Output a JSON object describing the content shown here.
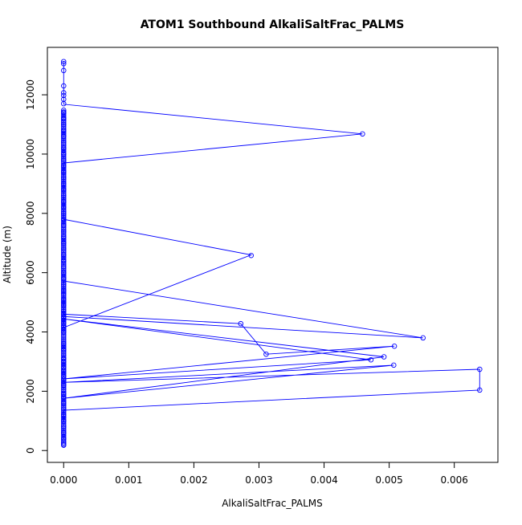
{
  "chart_data": {
    "type": "line",
    "title": "ATOM1 Southbound AlkaliSaltFrac_PALMS",
    "xlabel": "AlkaliSaltFrac_PALMS",
    "ylabel": "Altitude (m)",
    "xlim": [
      -0.00025,
      0.00667
    ],
    "ylim": [
      -400,
      13600
    ],
    "xticks": [
      0.0,
      0.001,
      0.002,
      0.003,
      0.004,
      0.005,
      0.006
    ],
    "xtick_labels": [
      "0.000",
      "0.001",
      "0.002",
      "0.003",
      "0.004",
      "0.005",
      "0.006"
    ],
    "yticks": [
      0,
      2000,
      4000,
      6000,
      8000,
      10000,
      12000
    ],
    "ytick_labels": [
      "0",
      "2000",
      "4000",
      "6000",
      "8000",
      "10000",
      "12000"
    ],
    "grid": false,
    "marker": "open-circle",
    "color": "#0000ff",
    "series": [
      {
        "x": [
          0.0,
          0.0,
          0.0,
          0.0,
          0.0,
          0.0,
          0.0,
          0.0,
          0.0,
          0.0,
          0.0,
          0.0,
          0.0,
          0.0,
          0.0,
          0.0,
          0.0,
          0.0,
          0.0,
          0.0,
          0.0,
          0.0,
          0.00459,
          0.0,
          0.0,
          0.0,
          0.0,
          0.0,
          0.0,
          0.0,
          0.0,
          0.0,
          0.0,
          0.0,
          0.0,
          0.0,
          0.0,
          0.0,
          0.0,
          0.0,
          0.00288,
          0.0,
          0.0,
          0.0,
          0.0,
          0.0,
          0.0,
          0.0,
          0.0,
          0.0,
          0.0,
          0.0,
          0.0,
          0.00552,
          0.0,
          0.0,
          0.0,
          0.00272,
          0.00311,
          0.0,
          0.0,
          0.00508,
          0.0,
          0.00472,
          0.0,
          0.0,
          0.00492,
          0.0,
          0.0,
          0.00507,
          0.0,
          0.0,
          0.0,
          0.00639,
          0.00639,
          0.0,
          0.0,
          0.0,
          0.0,
          0.0,
          0.0,
          0.0,
          0.0,
          0.0,
          0.0,
          0.0
        ],
        "y": [
          13120,
          13050,
          12820,
          12300,
          12070,
          11980,
          11850,
          11700,
          11400,
          11200,
          11000,
          10800,
          10600,
          10400,
          10200,
          10000,
          9800,
          9600,
          9400,
          9200,
          9000,
          8800,
          10680,
          8600,
          8400,
          8200,
          8000,
          7800,
          7600,
          7400,
          7200,
          7000,
          6800,
          6600,
          6400,
          6200,
          6000,
          5800,
          5600,
          5400,
          6580,
          5300,
          5100,
          5000,
          4900,
          4700,
          4600,
          4500,
          4400,
          4300,
          4200,
          4100,
          4000,
          3800,
          3600,
          3500,
          3400,
          4280,
          3250,
          3100,
          3000,
          3520,
          2900,
          3060,
          2800,
          2700,
          3160,
          2600,
          2500,
          2880,
          2400,
          2300,
          2200,
          2740,
          2040,
          1900,
          1800,
          1600,
          1400,
          1200,
          1000,
          800,
          600,
          400,
          250,
          180
        ]
      }
    ],
    "line_x": [
      0.0,
      0.0,
      0.0,
      0.0,
      0.0,
      0.0,
      0.0,
      0.0,
      0.00459,
      0.0,
      0.0,
      0.0,
      0.00288,
      0.0,
      0.0,
      0.0,
      0.00552,
      0.0,
      0.0,
      0.00272,
      0.00311,
      0.00508,
      0.0,
      0.00472,
      0.0,
      0.00492,
      0.0,
      0.00507,
      0.0,
      0.00639,
      0.00639,
      0.0,
      0.0,
      0.0
    ],
    "line_y": [
      13120,
      12820,
      12300,
      12070,
      11980,
      11850,
      11700,
      11680,
      10680,
      9700,
      9400,
      7800,
      6600,
      4150,
      4500,
      5720,
      3800,
      4520,
      4600,
      4280,
      3250,
      3520,
      2420,
      3060,
      4440,
      3160,
      1760,
      2880,
      2300,
      2740,
      2040,
      1360,
      1120,
      960
    ]
  }
}
